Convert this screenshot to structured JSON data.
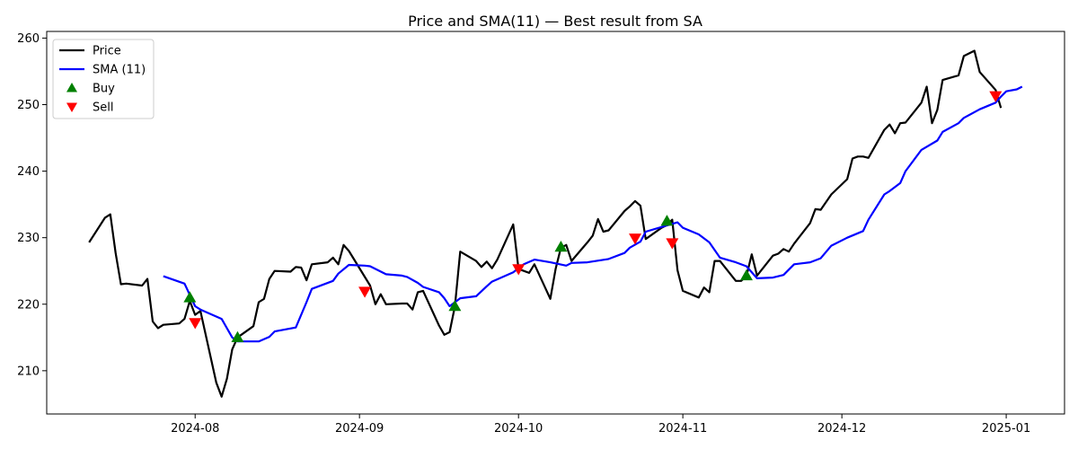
{
  "chart_data": {
    "type": "line",
    "title": "Price and SMA(11) — Best result from SA",
    "xlabel": "",
    "ylabel": "",
    "xlim": [
      "2024-07-04",
      "2025-01-12"
    ],
    "ylim": [
      203.5,
      261
    ],
    "grid": false,
    "legend_position": "top-left",
    "x_ticks": [
      "2024-08",
      "2024-09",
      "2024-10",
      "2024-11",
      "2024-12",
      "2025-01"
    ],
    "y_ticks": [
      210,
      220,
      230,
      240,
      250,
      260
    ],
    "series": [
      {
        "name": "Price",
        "color": "#000000",
        "points": [
          [
            "2024-07-12",
            229.3
          ],
          [
            "2024-07-15",
            233.0
          ],
          [
            "2024-07-16",
            233.5
          ],
          [
            "2024-07-17",
            227.7
          ],
          [
            "2024-07-18",
            223.0
          ],
          [
            "2024-07-19",
            223.1
          ],
          [
            "2024-07-22",
            222.8
          ],
          [
            "2024-07-23",
            223.8
          ],
          [
            "2024-07-24",
            217.4
          ],
          [
            "2024-07-25",
            216.4
          ],
          [
            "2024-07-26",
            216.9
          ],
          [
            "2024-07-29",
            217.1
          ],
          [
            "2024-07-30",
            217.8
          ],
          [
            "2024-07-31",
            220.5
          ],
          [
            "2024-08-01",
            218.4
          ],
          [
            "2024-08-02",
            219.0
          ],
          [
            "2024-08-05",
            208.2
          ],
          [
            "2024-08-06",
            206.1
          ],
          [
            "2024-08-07",
            208.8
          ],
          [
            "2024-08-08",
            213.2
          ],
          [
            "2024-08-09",
            215.0
          ],
          [
            "2024-08-12",
            216.7
          ],
          [
            "2024-08-13",
            220.3
          ],
          [
            "2024-08-14",
            220.8
          ],
          [
            "2024-08-15",
            223.8
          ],
          [
            "2024-08-16",
            225.0
          ],
          [
            "2024-08-19",
            224.9
          ],
          [
            "2024-08-20",
            225.6
          ],
          [
            "2024-08-21",
            225.5
          ],
          [
            "2024-08-22",
            223.6
          ],
          [
            "2024-08-23",
            226.0
          ],
          [
            "2024-08-26",
            226.3
          ],
          [
            "2024-08-27",
            227.0
          ],
          [
            "2024-08-28",
            226.0
          ],
          [
            "2024-08-29",
            228.9
          ],
          [
            "2024-08-30",
            228.0
          ],
          [
            "2024-09-03",
            222.8
          ],
          [
            "2024-09-04",
            220.0
          ],
          [
            "2024-09-05",
            221.5
          ],
          [
            "2024-09-06",
            220.0
          ],
          [
            "2024-09-09",
            220.1
          ],
          [
            "2024-09-10",
            220.1
          ],
          [
            "2024-09-11",
            219.2
          ],
          [
            "2024-09-12",
            221.8
          ],
          [
            "2024-09-13",
            222.0
          ],
          [
            "2024-09-16",
            216.8
          ],
          [
            "2024-09-17",
            215.4
          ],
          [
            "2024-09-18",
            215.8
          ],
          [
            "2024-09-19",
            219.7
          ],
          [
            "2024-09-20",
            227.9
          ],
          [
            "2024-09-23",
            226.5
          ],
          [
            "2024-09-24",
            225.6
          ],
          [
            "2024-09-25",
            226.4
          ],
          [
            "2024-09-26",
            225.4
          ],
          [
            "2024-09-27",
            226.7
          ],
          [
            "2024-09-30",
            232.0
          ],
          [
            "2024-10-01",
            225.3
          ],
          [
            "2024-10-02",
            225.0
          ],
          [
            "2024-10-03",
            224.7
          ],
          [
            "2024-10-04",
            226.0
          ],
          [
            "2024-10-07",
            220.8
          ],
          [
            "2024-10-08",
            225.3
          ],
          [
            "2024-10-09",
            228.5
          ],
          [
            "2024-10-10",
            228.9
          ],
          [
            "2024-10-11",
            226.5
          ],
          [
            "2024-10-14",
            229.3
          ],
          [
            "2024-10-15",
            230.3
          ],
          [
            "2024-10-16",
            232.8
          ],
          [
            "2024-10-17",
            230.9
          ],
          [
            "2024-10-18",
            231.1
          ],
          [
            "2024-10-21",
            234.0
          ],
          [
            "2024-10-22",
            234.7
          ],
          [
            "2024-10-23",
            235.5
          ],
          [
            "2024-10-24",
            234.8
          ],
          [
            "2024-10-25",
            229.8
          ],
          [
            "2024-10-28",
            231.5
          ],
          [
            "2024-10-29",
            231.9
          ],
          [
            "2024-10-30",
            232.7
          ],
          [
            "2024-10-31",
            225.1
          ],
          [
            "2024-11-01",
            222.0
          ],
          [
            "2024-11-04",
            221.0
          ],
          [
            "2024-11-05",
            222.5
          ],
          [
            "2024-11-06",
            221.8
          ],
          [
            "2024-11-07",
            226.5
          ],
          [
            "2024-11-08",
            226.5
          ],
          [
            "2024-11-11",
            223.5
          ],
          [
            "2024-11-12",
            223.5
          ],
          [
            "2024-11-13",
            224.2
          ],
          [
            "2024-11-14",
            227.5
          ],
          [
            "2024-11-15",
            224.3
          ],
          [
            "2024-11-18",
            227.3
          ],
          [
            "2024-11-19",
            227.6
          ],
          [
            "2024-11-20",
            228.3
          ],
          [
            "2024-11-21",
            227.9
          ],
          [
            "2024-11-22",
            229.1
          ],
          [
            "2024-11-25",
            232.2
          ],
          [
            "2024-11-26",
            234.3
          ],
          [
            "2024-11-27",
            234.2
          ],
          [
            "2024-11-29",
            236.5
          ],
          [
            "2024-12-02",
            238.8
          ],
          [
            "2024-12-03",
            241.9
          ],
          [
            "2024-12-04",
            242.2
          ],
          [
            "2024-12-05",
            242.2
          ],
          [
            "2024-12-06",
            242.0
          ],
          [
            "2024-12-09",
            246.2
          ],
          [
            "2024-12-10",
            247.0
          ],
          [
            "2024-12-11",
            245.7
          ],
          [
            "2024-12-12",
            247.2
          ],
          [
            "2024-12-13",
            247.3
          ],
          [
            "2024-12-16",
            250.3
          ],
          [
            "2024-12-17",
            252.7
          ],
          [
            "2024-12-18",
            247.2
          ],
          [
            "2024-12-19",
            249.2
          ],
          [
            "2024-12-20",
            253.7
          ],
          [
            "2024-12-23",
            254.4
          ],
          [
            "2024-12-24",
            257.3
          ],
          [
            "2024-12-26",
            258.1
          ],
          [
            "2024-12-27",
            254.9
          ],
          [
            "2024-12-30",
            252.2
          ],
          [
            "2024-12-31",
            249.5
          ]
        ]
      },
      {
        "name": "SMA (11)",
        "color": "#0000ff",
        "points": [
          [
            "2024-07-26",
            224.2
          ],
          [
            "2024-07-30",
            223.1
          ],
          [
            "2024-08-01",
            219.7
          ],
          [
            "2024-08-02",
            219.2
          ],
          [
            "2024-08-06",
            217.8
          ],
          [
            "2024-08-08",
            215.0
          ],
          [
            "2024-08-09",
            214.4
          ],
          [
            "2024-08-12",
            214.4
          ],
          [
            "2024-08-13",
            214.4
          ],
          [
            "2024-08-15",
            215.1
          ],
          [
            "2024-08-16",
            215.9
          ],
          [
            "2024-08-20",
            216.5
          ],
          [
            "2024-08-22",
            220.3
          ],
          [
            "2024-08-23",
            222.3
          ],
          [
            "2024-08-27",
            223.5
          ],
          [
            "2024-08-28",
            224.6
          ],
          [
            "2024-08-30",
            225.9
          ],
          [
            "2024-09-02",
            225.8
          ],
          [
            "2024-09-03",
            225.7
          ],
          [
            "2024-09-06",
            224.5
          ],
          [
            "2024-09-09",
            224.3
          ],
          [
            "2024-09-10",
            224.1
          ],
          [
            "2024-09-12",
            223.2
          ],
          [
            "2024-09-13",
            222.6
          ],
          [
            "2024-09-16",
            221.8
          ],
          [
            "2024-09-17",
            220.9
          ],
          [
            "2024-09-18",
            219.7
          ],
          [
            "2024-09-20",
            220.9
          ],
          [
            "2024-09-23",
            221.2
          ],
          [
            "2024-09-25",
            222.7
          ],
          [
            "2024-09-26",
            223.4
          ],
          [
            "2024-09-30",
            224.8
          ],
          [
            "2024-10-02",
            226.0
          ],
          [
            "2024-10-04",
            226.7
          ],
          [
            "2024-10-07",
            226.3
          ],
          [
            "2024-10-10",
            225.8
          ],
          [
            "2024-10-11",
            226.2
          ],
          [
            "2024-10-14",
            226.3
          ],
          [
            "2024-10-18",
            226.8
          ],
          [
            "2024-10-21",
            227.7
          ],
          [
            "2024-10-22",
            228.5
          ],
          [
            "2024-10-24",
            229.4
          ],
          [
            "2024-10-25",
            230.9
          ],
          [
            "2024-10-31",
            232.3
          ],
          [
            "2024-11-01",
            231.5
          ],
          [
            "2024-11-04",
            230.5
          ],
          [
            "2024-11-06",
            229.3
          ],
          [
            "2024-11-08",
            227.0
          ],
          [
            "2024-11-11",
            226.3
          ],
          [
            "2024-11-13",
            225.7
          ],
          [
            "2024-11-15",
            223.9
          ],
          [
            "2024-11-18",
            224.0
          ],
          [
            "2024-11-20",
            224.4
          ],
          [
            "2024-11-22",
            226.0
          ],
          [
            "2024-11-25",
            226.3
          ],
          [
            "2024-11-27",
            226.9
          ],
          [
            "2024-11-29",
            228.8
          ],
          [
            "2024-12-02",
            230.0
          ],
          [
            "2024-12-05",
            231.0
          ],
          [
            "2024-12-06",
            232.7
          ],
          [
            "2024-12-09",
            236.5
          ],
          [
            "2024-12-10",
            237.0
          ],
          [
            "2024-12-12",
            238.2
          ],
          [
            "2024-12-13",
            240.0
          ],
          [
            "2024-12-16",
            243.2
          ],
          [
            "2024-12-19",
            244.6
          ],
          [
            "2024-12-20",
            245.9
          ],
          [
            "2024-12-23",
            247.2
          ],
          [
            "2024-12-24",
            248.0
          ],
          [
            "2024-12-27",
            249.3
          ],
          [
            "2024-12-30",
            250.3
          ],
          [
            "2024-12-31",
            251.2
          ],
          [
            "2025-01-01",
            252.0
          ],
          [
            "2025-01-03",
            252.3
          ],
          [
            "2025-01-04",
            252.7
          ]
        ]
      }
    ],
    "markers": [
      {
        "name": "Buy",
        "color": "#008000",
        "shape": "triangle-up",
        "points": [
          [
            "2024-07-31",
            221.0
          ],
          [
            "2024-08-09",
            215.0
          ],
          [
            "2024-09-19",
            219.7
          ],
          [
            "2024-10-09",
            228.6
          ],
          [
            "2024-10-29",
            232.5
          ],
          [
            "2024-11-13",
            224.3
          ]
        ]
      },
      {
        "name": "Sell",
        "color": "#ff0000",
        "shape": "triangle-down",
        "points": [
          [
            "2024-08-01",
            217.2
          ],
          [
            "2024-09-02",
            221.9
          ],
          [
            "2024-10-01",
            225.3
          ],
          [
            "2024-10-23",
            229.9
          ],
          [
            "2024-10-30",
            229.2
          ],
          [
            "2024-12-30",
            251.3
          ]
        ]
      }
    ]
  }
}
